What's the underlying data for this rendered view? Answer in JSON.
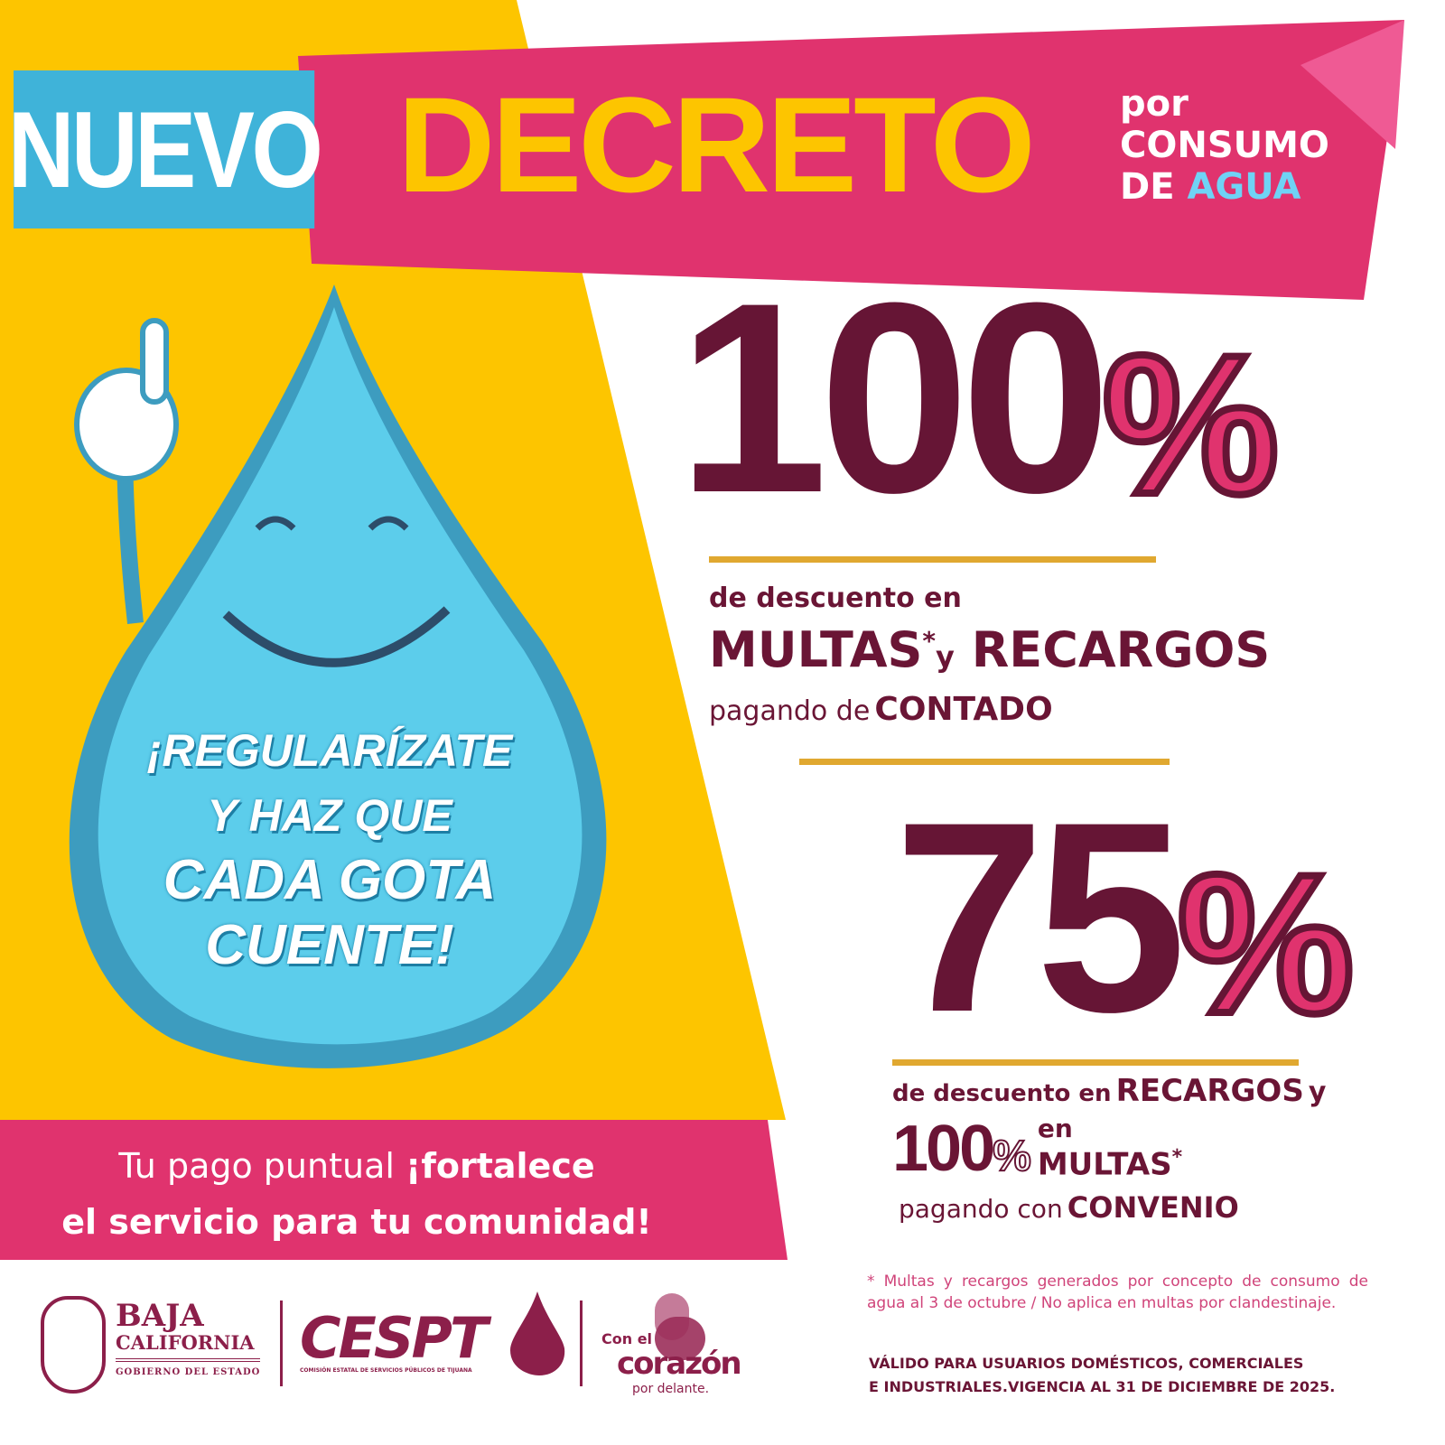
{
  "header": {
    "nuevo": "NUEVO",
    "decreto": "DECRETO",
    "por": "por",
    "consumo": "CONSUMO",
    "de": "DE",
    "agua": "AGUA"
  },
  "offer1": {
    "value": "100",
    "percent": "%",
    "line1": "de descuento en",
    "multas": "MULTAS",
    "asterisk": "*",
    "y": "y",
    "recargos": "RECARGOS",
    "pagando": "pagando de",
    "contado": "CONTADO"
  },
  "offer2": {
    "value": "75",
    "percent": "%",
    "line1": "de descuento en",
    "recargos": "RECARGOS",
    "y": "y",
    "value2": "100",
    "percent2": "%",
    "en": "en",
    "multas": "MULTAS",
    "asterisk": "*",
    "pagando": "pagando con",
    "convenio": "CONVENIO"
  },
  "mascot": {
    "slogan1": "¡REGULARÍZATE",
    "slogan2": "Y HAZ QUE",
    "slogan3": "CADA GOTA",
    "slogan4": "CUENTE!"
  },
  "banner": {
    "line1_a": "Tu pago puntual",
    "line1_b": "¡fortalece",
    "line2": "el servicio para tu comunidad!"
  },
  "footnote": {
    "asterisk": "*",
    "text": "Multas y recargos generados por concepto de consumo de agua al  3 de octubre / No aplica en multas por clandestinaje."
  },
  "validity": {
    "line1": "VÁLIDO PARA USUARIOS DOMÉSTICOS, COMERCIALES",
    "line2": "E INDUSTRIALES.VIGENCIA AL 31 DE DICIEMBRE DE 2025."
  },
  "logos": {
    "bc_line1": "BAJA",
    "bc_line2": "CALIFORNIA",
    "bc_line3": "GOBIERNO DEL ESTADO",
    "cespt": "CESPT",
    "cespt_sub": "COMISIÓN ESTATAL DE SERVICIOS PÚBLICOS DE TIJUANA",
    "corazon_1": "Con el",
    "corazon_2": "corazón",
    "corazon_3": "por delante."
  },
  "colors": {
    "yellow": "#fdc500",
    "pink": "#e0336e",
    "maroon": "#661535",
    "blue": "#3fb3d9",
    "gold": "#e0a830"
  }
}
